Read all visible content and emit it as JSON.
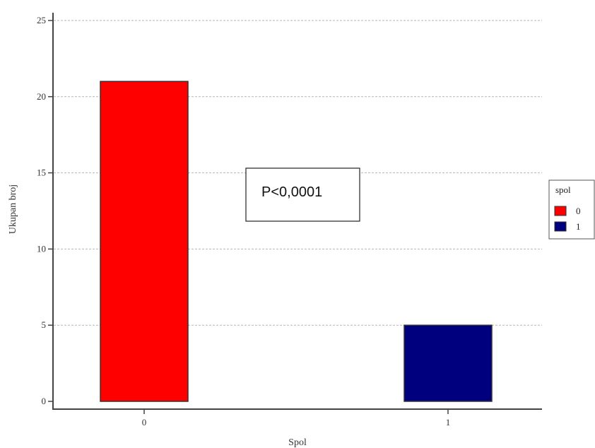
{
  "chart_data": {
    "type": "bar",
    "xlabel": "Spol",
    "ylabel": "Ukupan broj",
    "categories": [
      "0",
      "1"
    ],
    "values": [
      21,
      5
    ],
    "bar_colors": [
      "#ff0000",
      "#00007f"
    ],
    "ylim": [
      0,
      25
    ],
    "yticks": [
      0,
      5,
      10,
      15,
      20,
      25
    ],
    "grid": "horizontal dashed",
    "legend": {
      "title": "spol",
      "placement": "right",
      "entries": [
        {
          "label": "0",
          "color": "#ff0000"
        },
        {
          "label": "1",
          "color": "#00007f"
        }
      ]
    },
    "annotation": "P<0,0001"
  }
}
